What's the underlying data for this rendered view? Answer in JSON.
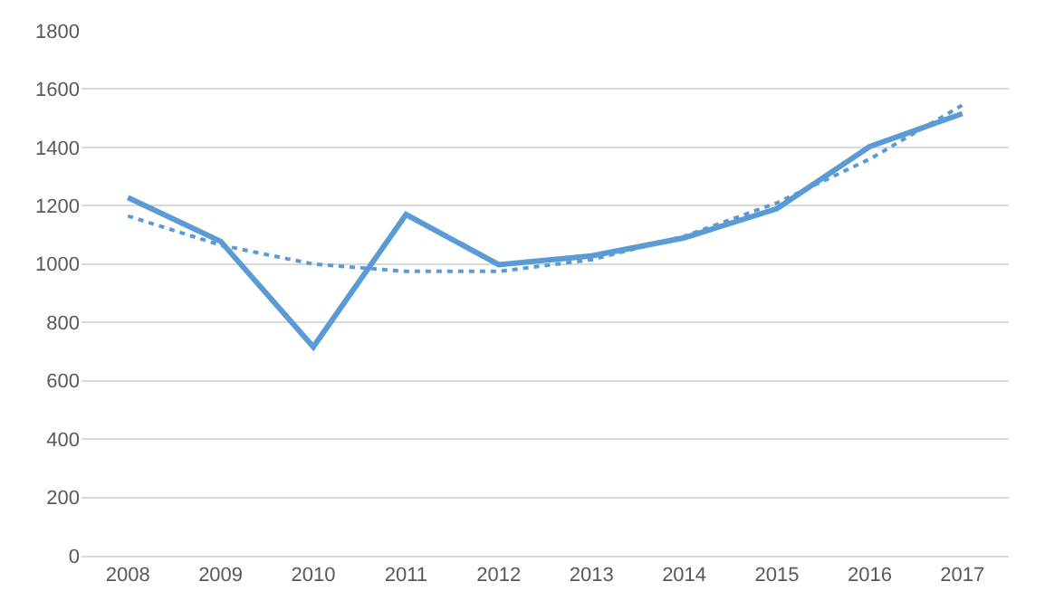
{
  "chart_data": {
    "type": "line",
    "categories": [
      "2008",
      "2009",
      "2010",
      "2011",
      "2012",
      "2013",
      "2014",
      "2015",
      "2016",
      "2017"
    ],
    "series": [
      {
        "color": "#5b9bd5",
        "values": [
          1228,
          1078,
          716,
          1170,
          998,
          1028,
          1090,
          1190,
          1403,
          1516
        ],
        "line_style": "solid"
      },
      {
        "color": "#5b9bd5",
        "values": [
          1165,
          1065,
          1000,
          975,
          975,
          1015,
          1095,
          1210,
          1360,
          1545
        ],
        "line_style": "dotted"
      }
    ],
    "ylim": [
      0,
      1800
    ],
    "yticks": [
      0,
      200,
      400,
      600,
      800,
      1000,
      1200,
      1400,
      1600,
      1800
    ],
    "grid": "y",
    "marker": "none"
  }
}
